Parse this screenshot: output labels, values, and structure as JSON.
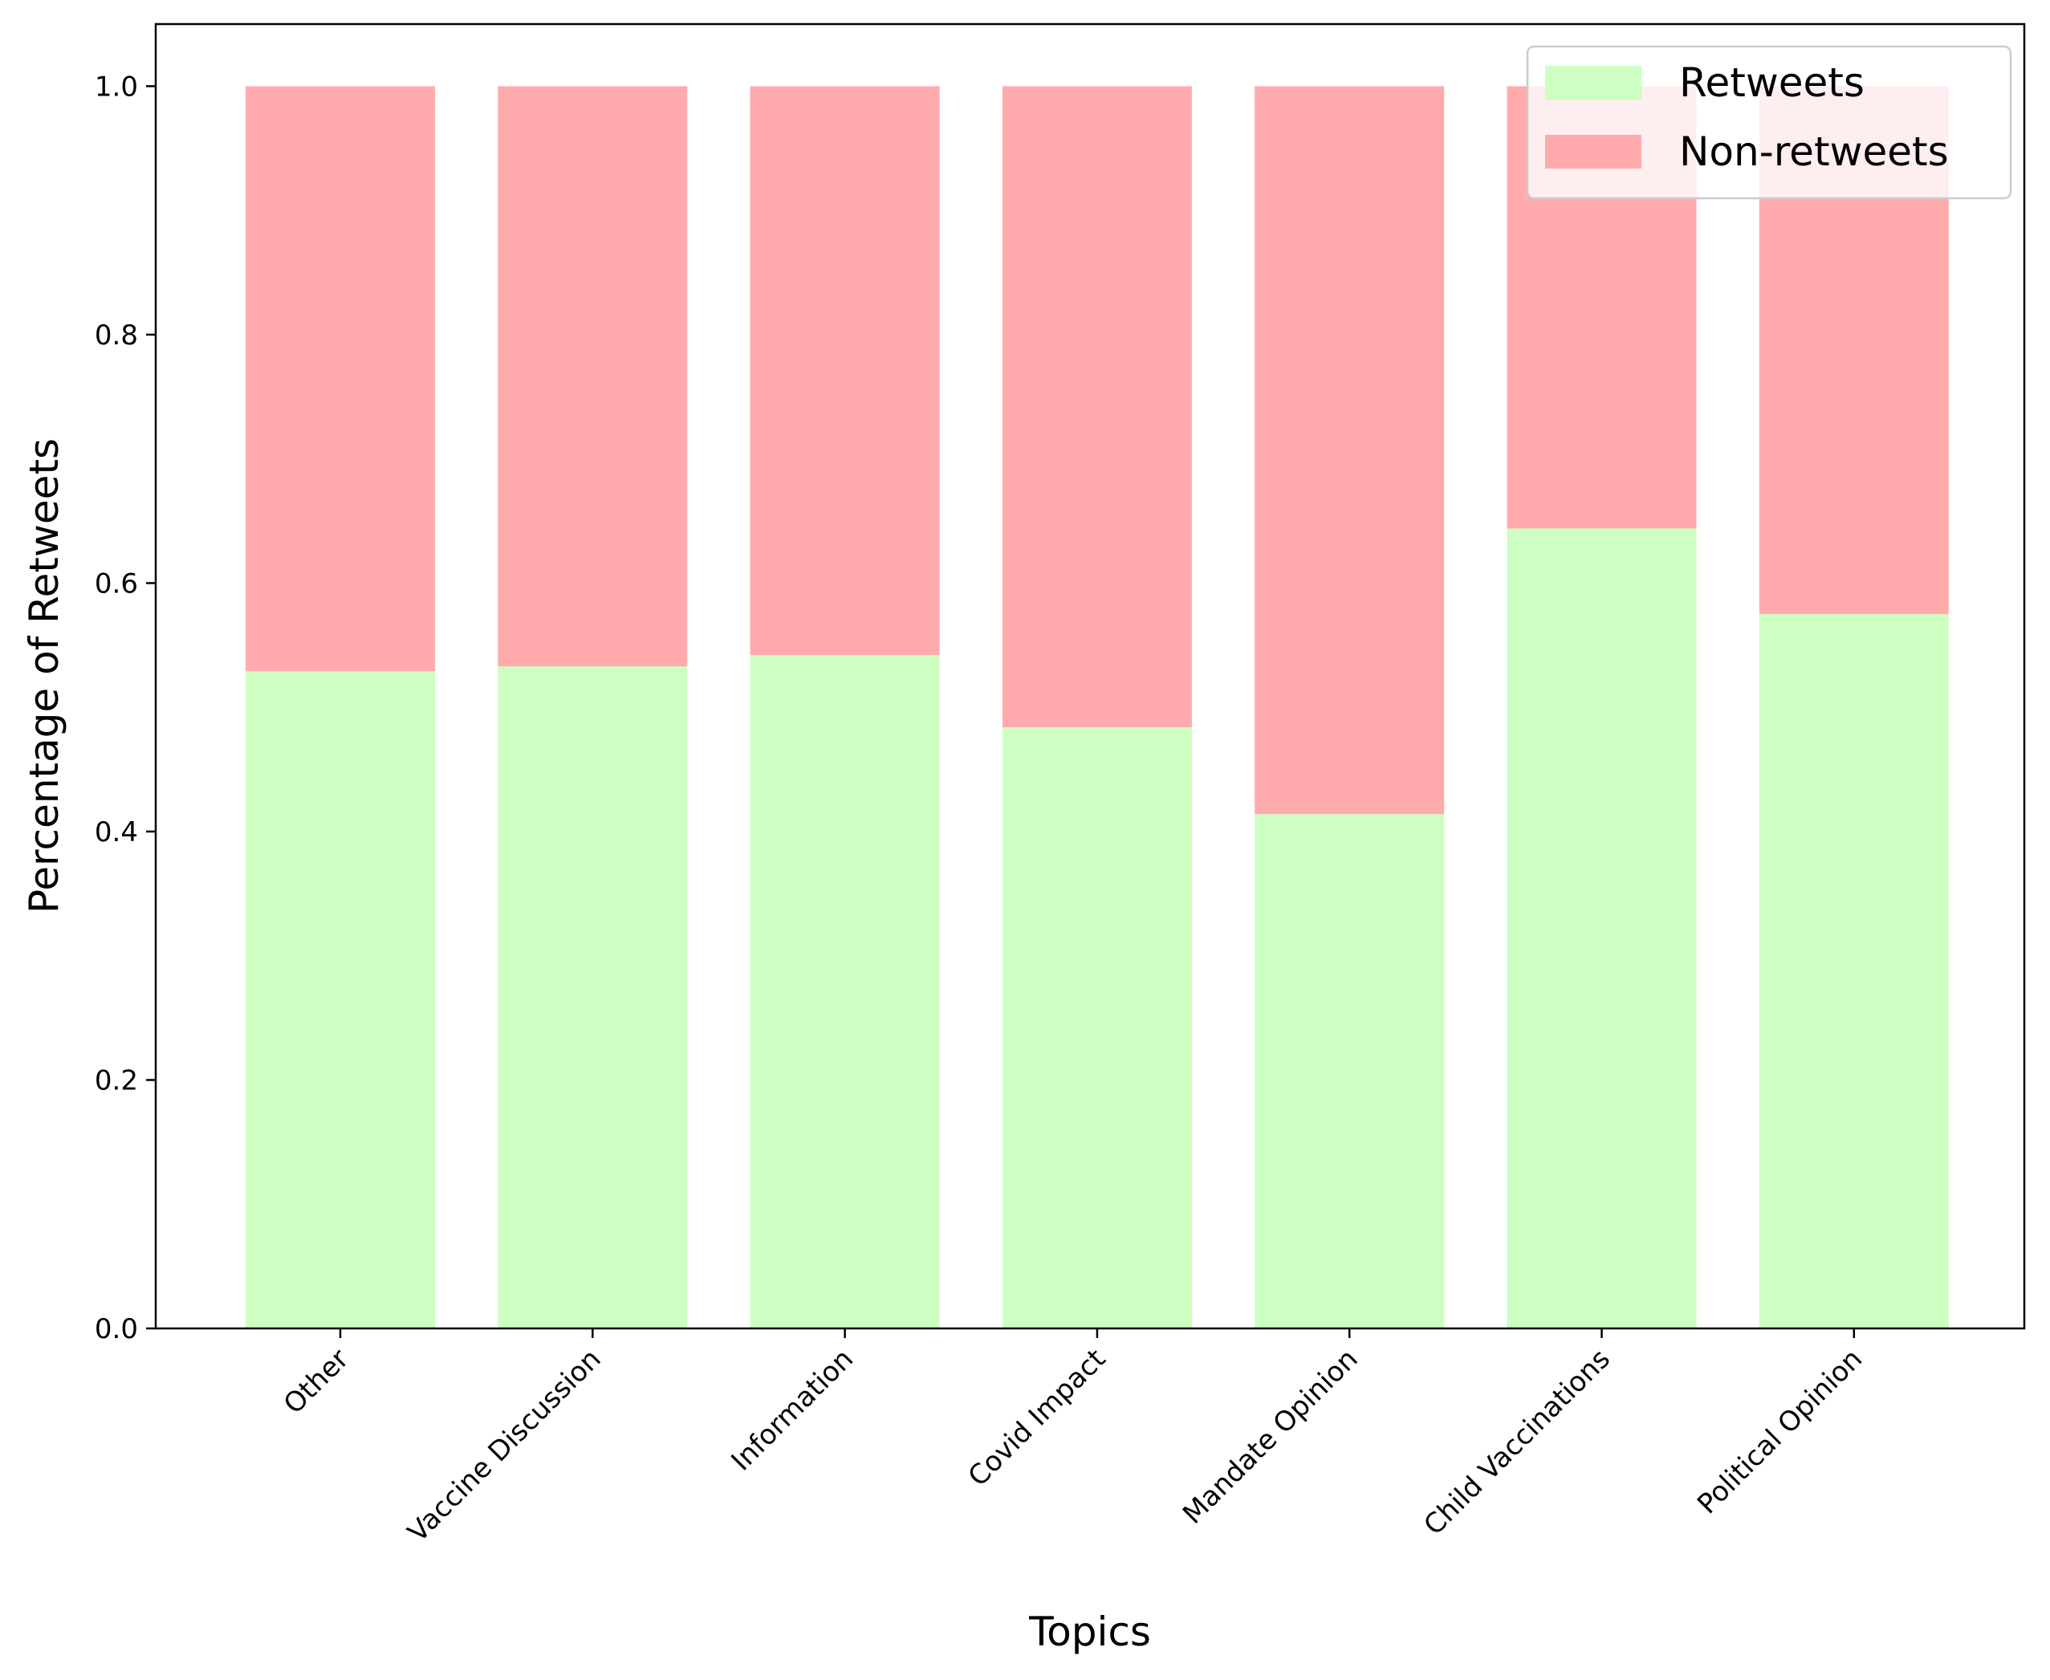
{
  "chart_data": {
    "type": "bar",
    "stacked": true,
    "normalized": true,
    "categories": [
      "Other",
      "Vaccine Discussion",
      "Information",
      "Covid Impact",
      "Mandate Opinion",
      "Child Vaccinations",
      "Political Opinion"
    ],
    "series": [
      {
        "name": "Retweets",
        "color": "#ccffc1",
        "values": [
          0.529,
          0.533,
          0.542,
          0.484,
          0.414,
          0.644,
          0.575
        ]
      },
      {
        "name": "Non-retweets",
        "color": "#ffabad",
        "values": [
          0.471,
          0.467,
          0.458,
          0.516,
          0.586,
          0.356,
          0.425
        ]
      }
    ],
    "xlabel": "Topics",
    "ylabel": "Percentage of Retweets",
    "ylim": [
      0,
      1.05
    ],
    "yticks": [
      "0.0",
      "0.2",
      "0.4",
      "0.6",
      "0.8",
      "1.0"
    ],
    "grid": false,
    "legend_position": "top-right"
  }
}
